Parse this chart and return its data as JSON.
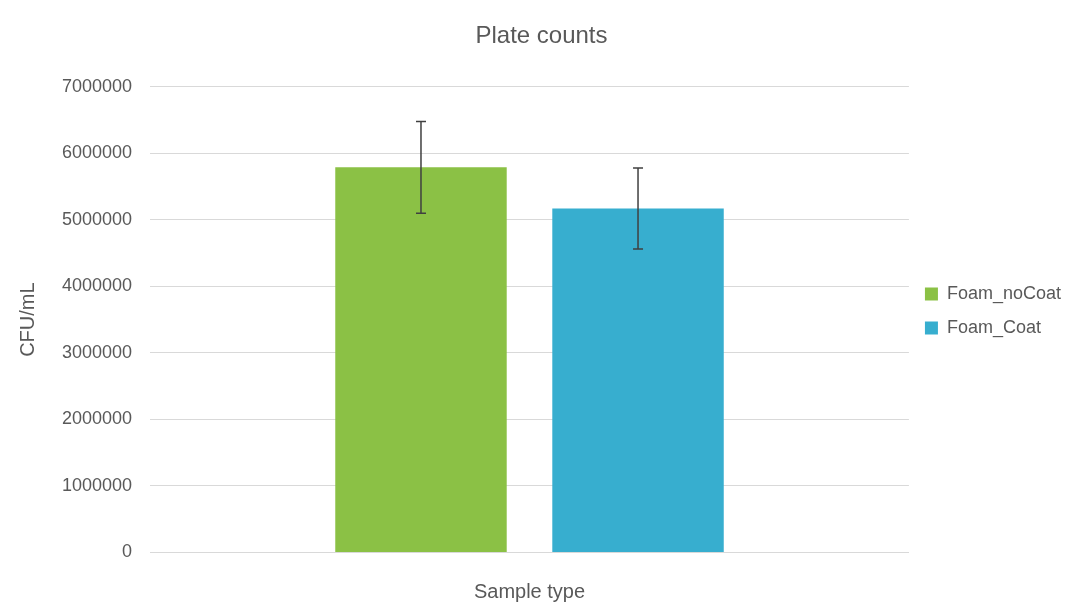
{
  "chart_data": {
    "type": "bar",
    "title": "Plate counts",
    "xlabel": "Sample type",
    "ylabel": "CFU/mL",
    "categories": [
      null
    ],
    "series": [
      {
        "name": "Foam_noCoat",
        "color": "#8bc145",
        "values": [
          5790000
        ],
        "errors": [
          690000
        ]
      },
      {
        "name": "Foam_Coat",
        "color": "#37aecf",
        "values": [
          5170000
        ],
        "errors": [
          610000
        ]
      }
    ],
    "ylim": [
      0,
      7000000
    ],
    "yticks": [
      0,
      1000000,
      2000000,
      3000000,
      4000000,
      5000000,
      6000000,
      7000000
    ],
    "grid": "y",
    "legend": "right"
  }
}
